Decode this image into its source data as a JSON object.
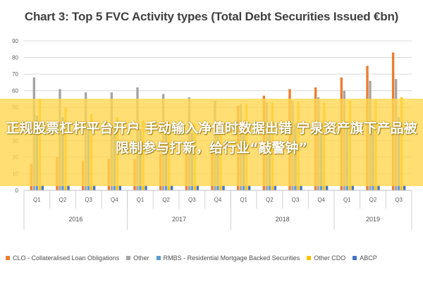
{
  "chart_data": {
    "type": "bar",
    "title": "Chart 3: Top 5 FVC Activity types (Total Debt Securities Issued €bn)",
    "xlabel": "",
    "ylabel": "",
    "ylim": [
      0,
      90
    ],
    "yticks": [
      0,
      10,
      20,
      30,
      40,
      50,
      60,
      70,
      80,
      90
    ],
    "grid": true,
    "legend_position": "bottom",
    "categories": [
      "Q1",
      "Q2",
      "Q3",
      "Q4",
      "Q1",
      "Q2",
      "Q3",
      "Q4",
      "Q1",
      "Q2",
      "Q3",
      "Q4",
      "Q1",
      "Q2",
      "Q3"
    ],
    "groups": [
      {
        "label": "2016",
        "span": 4
      },
      {
        "label": "2017",
        "span": 4
      },
      {
        "label": "2018",
        "span": 4
      },
      {
        "label": "2019",
        "span": 3
      }
    ],
    "series": [
      {
        "name": "CLO - Collateralised Loan Obligations",
        "color": "#ED7D31",
        "values": [
          16,
          20,
          18,
          19,
          19,
          22,
          24,
          26,
          51,
          57,
          61,
          62,
          68,
          75,
          83
        ]
      },
      {
        "name": "Other",
        "color": "#A5A5A5",
        "values": [
          68,
          61,
          59,
          59,
          62,
          58,
          56,
          54,
          52,
          53,
          54,
          56,
          60,
          66,
          67
        ]
      },
      {
        "name": "RMBS - Residential Mortgage Backed Securities",
        "color": "#5B9BD5",
        "values": [
          45,
          44,
          40,
          38,
          37,
          35,
          35,
          36,
          38,
          39,
          40,
          40,
          41,
          42,
          44
        ]
      },
      {
        "name": "Other CDO",
        "color": "#FFC000",
        "values": [
          55,
          50,
          46,
          44,
          42,
          41,
          40,
          41,
          52,
          53,
          53,
          53,
          54,
          54,
          56
        ]
      },
      {
        "name": "ABCP",
        "color": "#4472C4",
        "values": [
          3,
          3,
          3,
          3,
          3,
          3,
          3,
          3,
          3,
          3,
          3,
          3,
          3,
          3,
          3
        ]
      }
    ]
  },
  "overlay": {
    "text": "正规股票杠杆平台开户 手动输入净值时数据出错 宁泉资产旗下产品被限制参与打新，给行业“敲警钟”"
  }
}
